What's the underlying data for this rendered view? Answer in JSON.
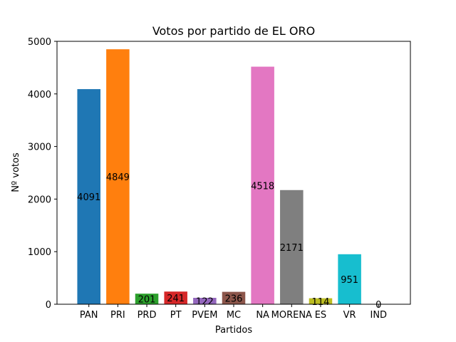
{
  "chart_data": {
    "type": "bar",
    "title": "Votos por partido de EL ORO",
    "xlabel": "Partidos",
    "ylabel": "Nº votos",
    "categories": [
      "PAN",
      "PRI",
      "PRD",
      "PT",
      "PVEM",
      "MC",
      "NA",
      "MORENA",
      "ES",
      "VR",
      "IND"
    ],
    "values": [
      4091,
      4849,
      201,
      241,
      122,
      236,
      4518,
      2171,
      114,
      951,
      0
    ],
    "value_labels": [
      "4091",
      "4849",
      "201",
      "241",
      "122",
      "236",
      "4518",
      "2171",
      "114",
      "951",
      "0"
    ],
    "colors": [
      "#1f77b4",
      "#ff7f0e",
      "#2ca02c",
      "#d62728",
      "#9467bd",
      "#8c564b",
      "#e377c2",
      "#7f7f7f",
      "#bcbd22",
      "#17becf",
      "#1f77b4"
    ],
    "ylim": [
      0,
      5000
    ],
    "yticks": [
      0,
      1000,
      2000,
      3000,
      4000,
      5000
    ],
    "ytick_labels": [
      "0",
      "1000",
      "2000",
      "3000",
      "4000",
      "5000"
    ],
    "grid": false,
    "legend": "none"
  }
}
